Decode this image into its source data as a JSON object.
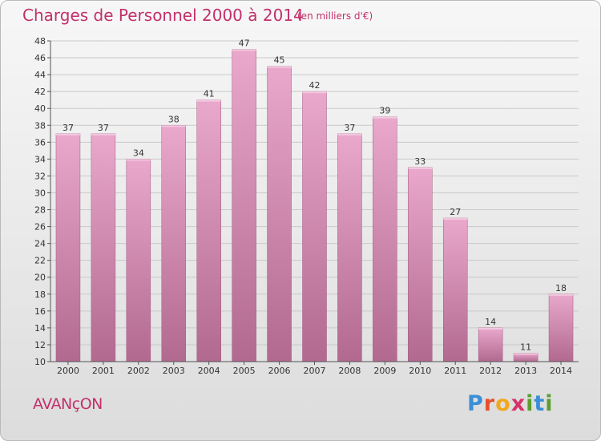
{
  "header": {
    "title": "Charges de Personnel 2000 à 2014",
    "subtitle": "(en milliers d'€)"
  },
  "footer": {
    "commune": "AVANçON",
    "logo_letters": [
      "P",
      "r",
      "o",
      "x",
      "i",
      "t",
      "i"
    ]
  },
  "chart_data": {
    "type": "bar",
    "title": "Charges de Personnel 2000 à 2014",
    "subtitle": "(en milliers d'€)",
    "xlabel": "",
    "ylabel": "",
    "categories": [
      "2000",
      "2001",
      "2002",
      "2003",
      "2004",
      "2005",
      "2006",
      "2007",
      "2008",
      "2009",
      "2010",
      "2011",
      "2012",
      "2013",
      "2014"
    ],
    "values": [
      37,
      37,
      34,
      38,
      41,
      47,
      45,
      42,
      37,
      39,
      33,
      27,
      14,
      11,
      18
    ],
    "ylim": [
      10,
      48
    ],
    "yticks": [
      10,
      12,
      14,
      16,
      18,
      20,
      22,
      24,
      26,
      28,
      30,
      32,
      34,
      36,
      38,
      40,
      42,
      44,
      46,
      48
    ],
    "grid": true,
    "colors": {
      "bar_top": "#e9a8cc",
      "bar_bottom": "#b2698f",
      "grid": "#c9c9c9",
      "axis": "#555555"
    }
  }
}
